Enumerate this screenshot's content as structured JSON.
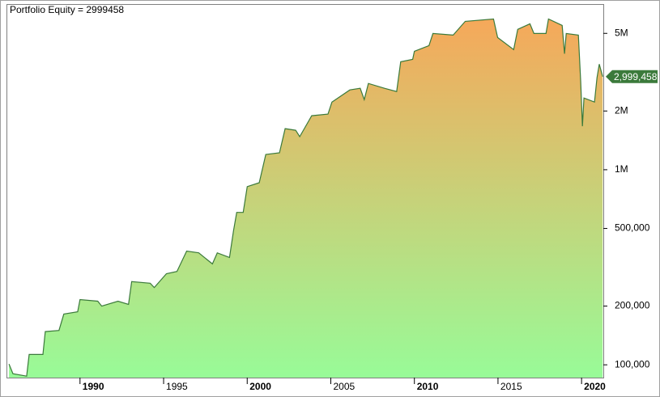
{
  "chart_data": {
    "type": "area",
    "title": "Portfolio Equity = 2999458",
    "log_scale": true,
    "color": "#3b7a3b",
    "area_colors": [
      "#f6a85a",
      "#98fb98"
    ],
    "xlim": [
      1985.65,
      2021.3
    ],
    "xticks": [
      1990,
      1995,
      2000,
      2005,
      2010,
      2015,
      2020
    ],
    "ylim": [
      86000,
      7000000
    ],
    "yticks": [
      {
        "value": 100000,
        "label": "100,000"
      },
      {
        "value": 200000,
        "label": "200,000"
      },
      {
        "value": 500000,
        "label": "500,000"
      },
      {
        "value": 1000000,
        "label": "1M"
      },
      {
        "value": 2000000,
        "label": "2M"
      },
      {
        "value": 5000000,
        "label": "5M"
      }
    ],
    "series": [
      {
        "name": "Portfolio Equity",
        "x": [
          1985.75,
          1985.99,
          1986.81,
          1986.96,
          1987.78,
          1987.92,
          1988.74,
          1989.03,
          1989.86,
          1990.0,
          1991.06,
          1991.3,
          1992.27,
          1992.9,
          1993.09,
          1994.2,
          1994.44,
          1995.17,
          1995.8,
          1996.38,
          1997.1,
          1997.92,
          1998.21,
          1998.94,
          1999.18,
          1999.37,
          1999.76,
          2000.0,
          2000.72,
          2001.11,
          2001.93,
          2002.27,
          2002.9,
          2003.14,
          2003.86,
          2004.83,
          2005.07,
          2006.14,
          2006.76,
          2007.0,
          2007.25,
          2008.21,
          2008.94,
          2009.18,
          2009.9,
          2010.0,
          2010.87,
          2011.11,
          2012.32,
          2013.04,
          2014.73,
          2014.98,
          2015.94,
          2016.18,
          2016.91,
          2017.15,
          2017.87,
          2018.02,
          2018.84,
          2018.98,
          2019.08,
          2019.81,
          2019.95,
          2020.05,
          2020.14,
          2020.77,
          2020.92,
          2021.06,
          2021.26
        ],
        "values": [
          101000,
          90000,
          87500,
          113000,
          113000,
          148000,
          150000,
          182000,
          187000,
          216000,
          212000,
          200000,
          212000,
          204000,
          267000,
          262000,
          249000,
          293000,
          301000,
          383000,
          375000,
          329000,
          375000,
          355000,
          485000,
          604000,
          604000,
          819000,
          858000,
          1198000,
          1221000,
          1624000,
          1594000,
          1477000,
          1892000,
          1929000,
          2223000,
          2565000,
          2615000,
          2288000,
          2768000,
          2615000,
          2517000,
          3577000,
          3680000,
          4048000,
          4327000,
          4995000,
          4900000,
          5760000,
          5925000,
          4760000,
          4130000,
          5240000,
          5600000,
          4995000,
          4995000,
          5925000,
          5495000,
          3935000,
          4995000,
          4900000,
          2820000,
          1671000,
          2332000,
          2223000,
          2959000,
          3477000,
          2999458
        ],
        "value_labels": [
          null,
          null,
          null,
          null,
          null,
          null,
          null,
          null,
          null,
          null,
          null,
          null,
          null,
          null,
          null,
          null,
          null,
          null,
          null,
          null,
          null,
          null,
          null,
          null,
          null,
          null,
          null,
          null,
          null,
          null,
          null,
          null,
          null,
          null,
          null,
          null,
          null,
          null,
          null,
          null,
          null,
          null,
          null,
          null,
          null,
          null,
          null,
          null,
          null,
          null,
          null,
          null,
          null,
          null,
          null,
          null,
          null,
          null,
          null,
          null,
          null,
          null,
          null,
          null,
          null,
          null,
          null,
          null,
          "2,999,458"
        ]
      }
    ]
  }
}
